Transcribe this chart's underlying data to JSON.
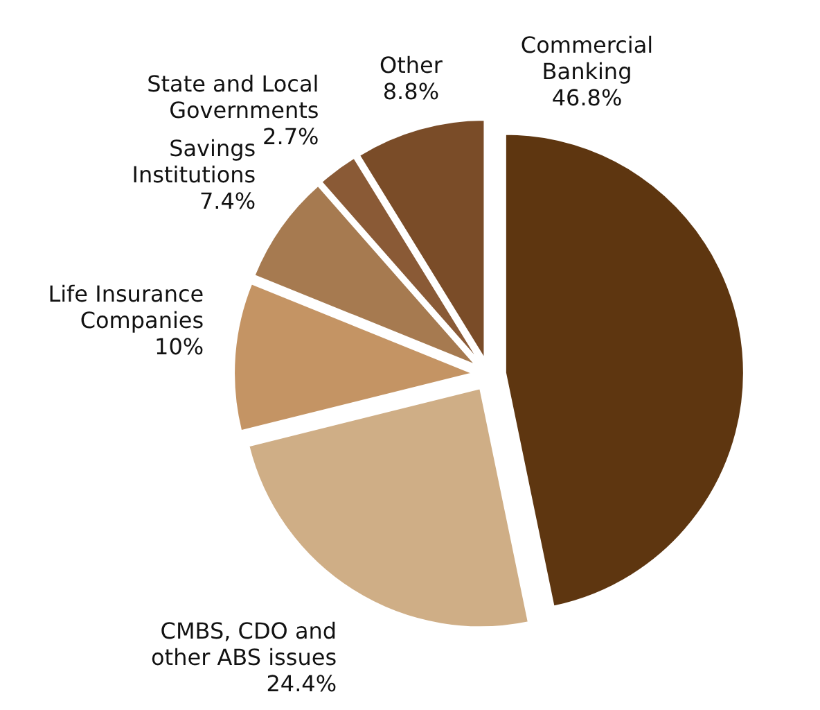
{
  "chart_data": {
    "type": "pie",
    "categories": [
      "Commercial Banking",
      "CMBS, CDO and other ABS issues",
      "Life Insurance Companies",
      "Savings Institutions",
      "State and Local Governments",
      "Other"
    ],
    "values": [
      46.8,
      24.4,
      10,
      7.4,
      2.7,
      8.8
    ],
    "value_labels": [
      "46.8%",
      "24.4%",
      "10%",
      "7.4%",
      "2.7%",
      "8.8%"
    ],
    "colors": [
      "#5e3610",
      "#cfae86",
      "#c49464",
      "#a67a50",
      "#8a5a36",
      "#7a4c28"
    ],
    "legend": false
  }
}
